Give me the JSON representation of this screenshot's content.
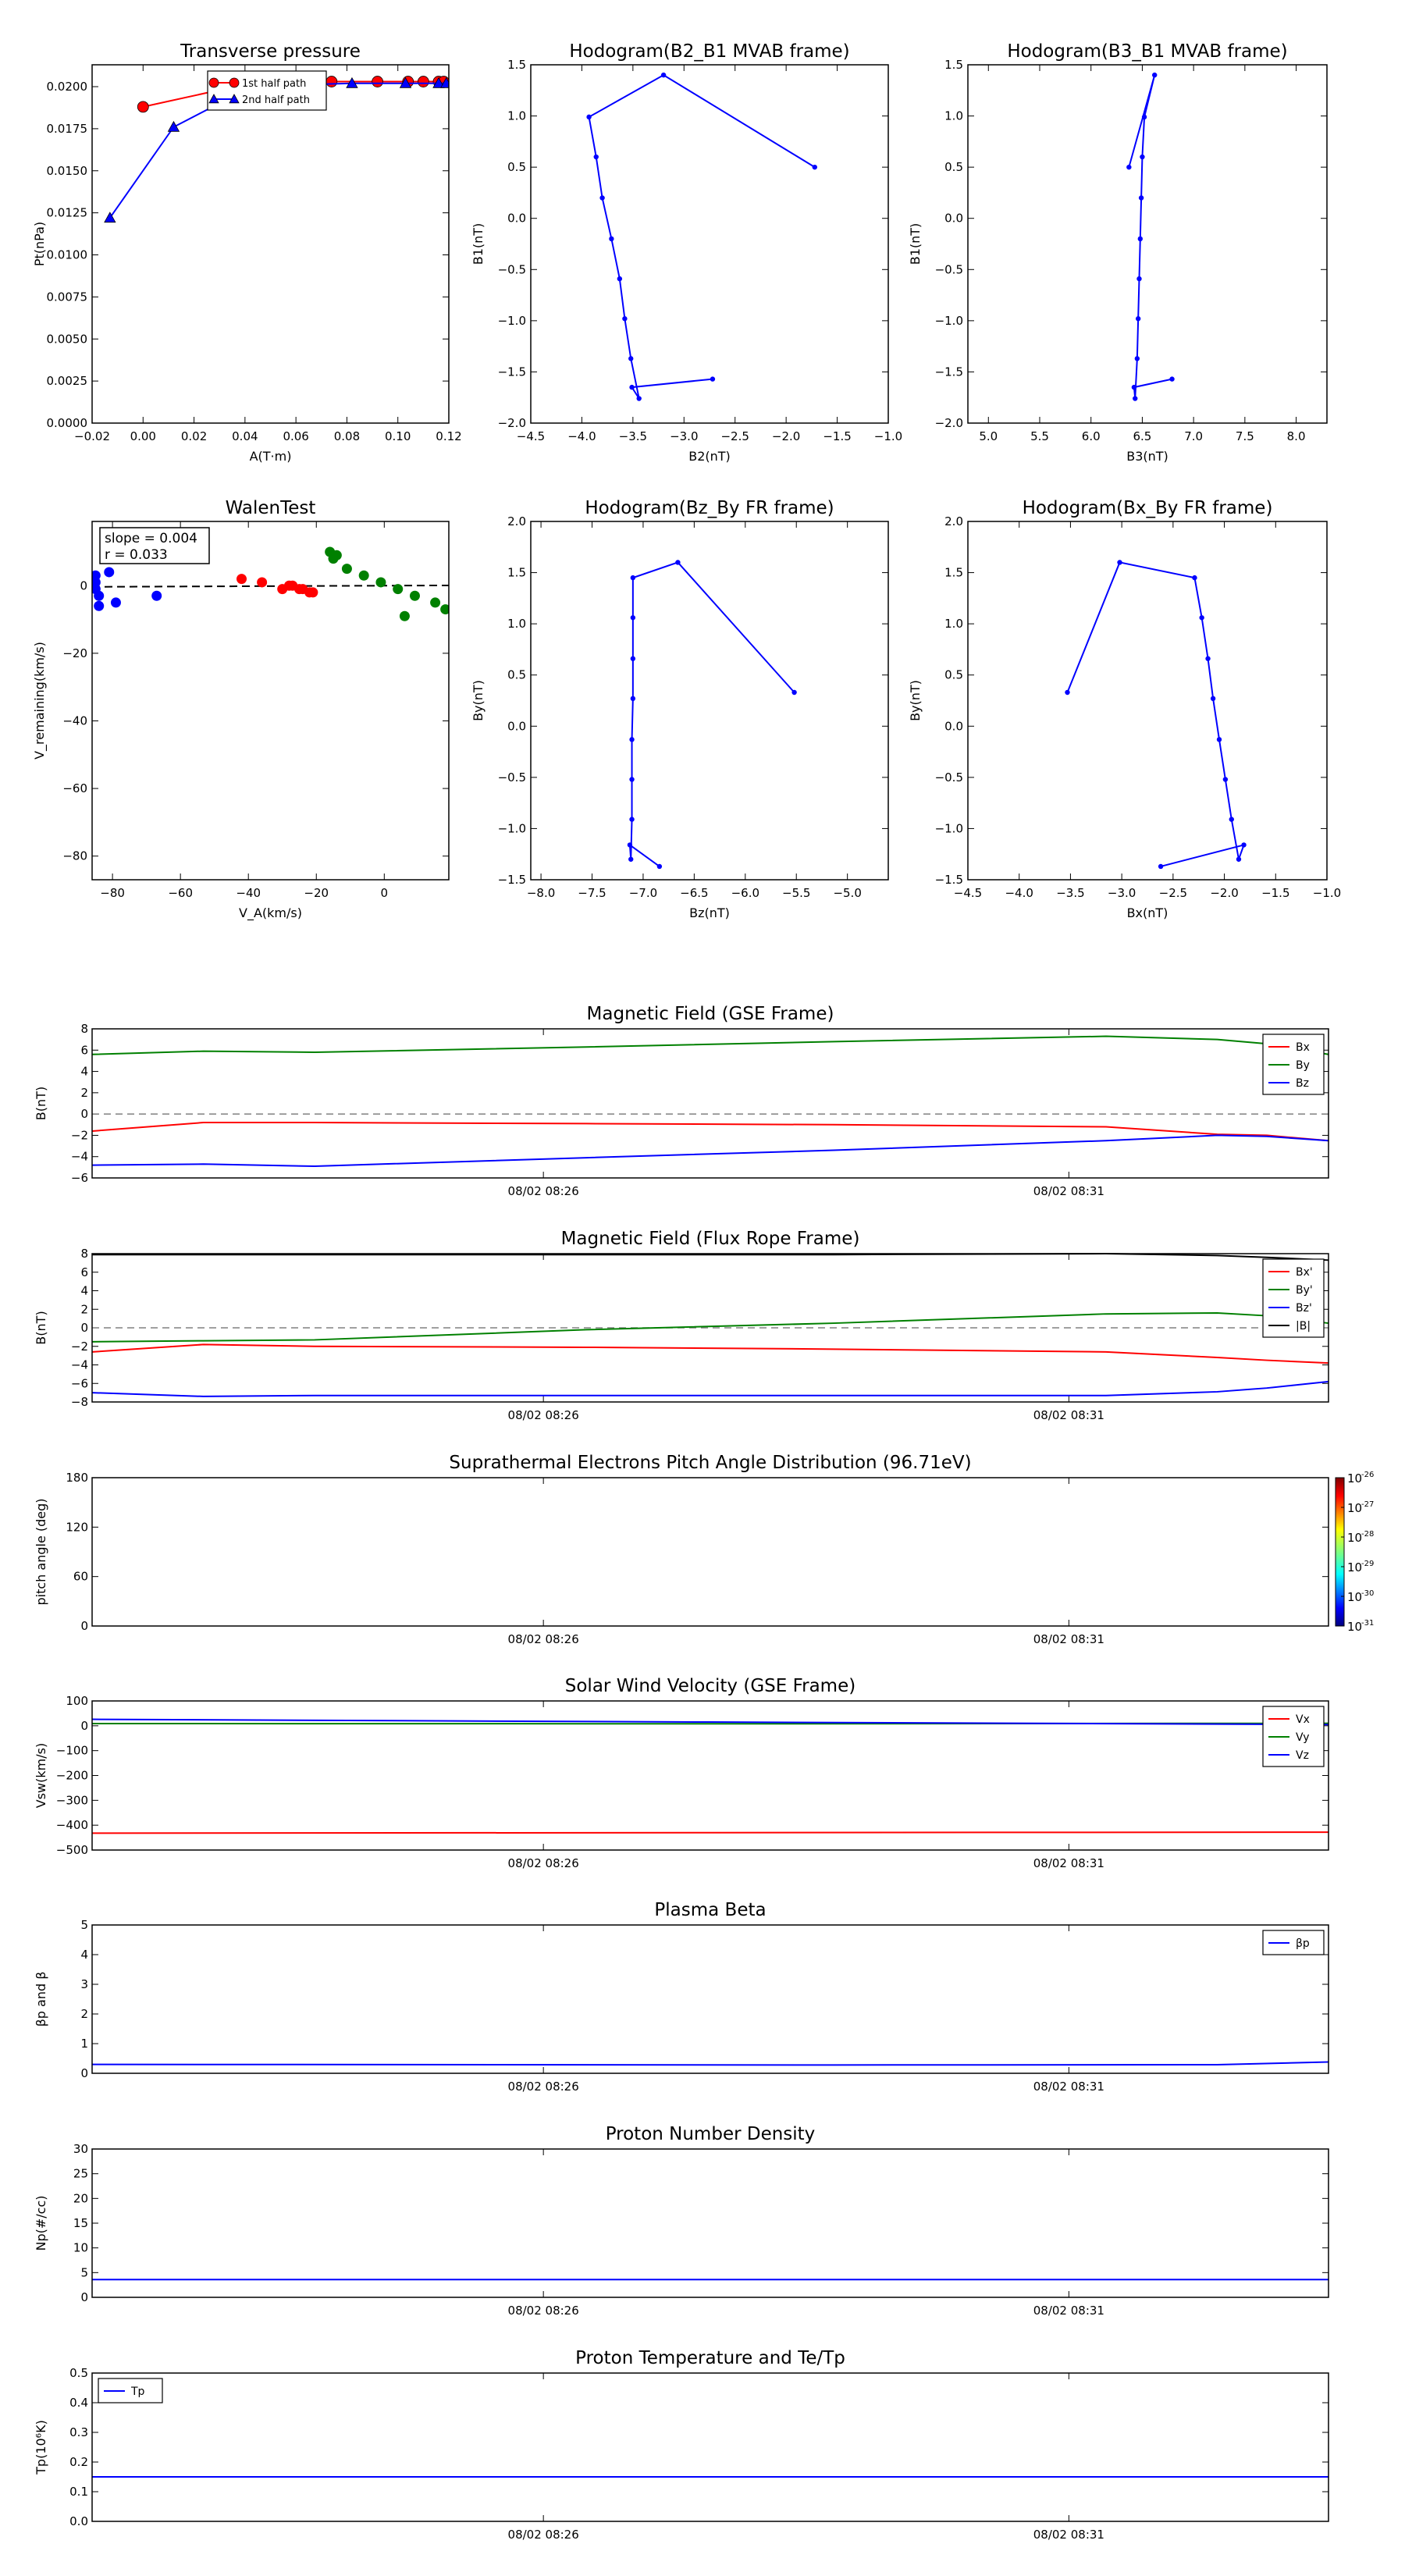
{
  "colors": {
    "red": "#ff0000",
    "green": "#008000",
    "blue": "#0000ff",
    "black": "#000000",
    "gray": "#808080"
  },
  "time_ticks": [
    "08/02 08:26",
    "08/02 08:31"
  ],
  "chart_data": [
    {
      "id": "transverse_pressure",
      "type": "line",
      "title": "Transverse pressure",
      "xlabel": "A(T·m)",
      "ylabel": "Pt(nPa)",
      "xlim": [
        -0.02,
        0.12
      ],
      "ylim": [
        0,
        0.0213
      ],
      "xticks": [
        -0.02,
        0.0,
        0.02,
        0.04,
        0.06,
        0.08,
        0.1,
        0.12
      ],
      "xtick_labels": [
        "−0.02",
        "0.00",
        "0.02",
        "0.04",
        "0.06",
        "0.08",
        "0.10",
        "0.12"
      ],
      "yticks": [
        0,
        0.0025,
        0.005,
        0.0075,
        0.01,
        0.0125,
        0.015,
        0.0175,
        0.02
      ],
      "ytick_labels": [
        "0.0000",
        "0.0025",
        "0.0050",
        "0.0075",
        "0.0100",
        "0.0125",
        "0.0150",
        "0.0175",
        "0.0200"
      ],
      "legend": "top-right",
      "series": [
        {
          "name": "1st half path",
          "color": "red",
          "marker": "circle",
          "x": [
            0.0,
            0.033,
            0.058,
            0.074,
            0.092,
            0.104,
            0.11,
            0.116,
            0.118
          ],
          "y": [
            0.0188,
            0.0199,
            0.0203,
            0.0203,
            0.0203,
            0.0203,
            0.0203,
            0.0203,
            0.0203
          ]
        },
        {
          "name": "2nd half path",
          "color": "blue",
          "marker": "triangle",
          "x": [
            -0.013,
            0.012,
            0.035,
            0.058,
            0.082,
            0.103,
            0.116,
            0.119
          ],
          "y": [
            0.0122,
            0.0176,
            0.0194,
            0.0201,
            0.0202,
            0.0202,
            0.0202,
            0.0202
          ]
        }
      ]
    },
    {
      "id": "hodo_b2_b1",
      "type": "line",
      "title": "Hodogram(B2_B1 MVAB frame)",
      "xlabel": "B2(nT)",
      "ylabel": "B1(nT)",
      "xlim": [
        -4.5,
        -1.0
      ],
      "ylim": [
        -2.0,
        1.5
      ],
      "xticks": [
        -4.5,
        -4.0,
        -3.5,
        -3.0,
        -2.5,
        -2.0,
        -1.5,
        -1.0
      ],
      "xtick_labels": [
        "−4.5",
        "−4.0",
        "−3.5",
        "−3.0",
        "−2.5",
        "−2.0",
        "−1.5",
        "−1.0"
      ],
      "yticks": [
        -2.0,
        -1.5,
        -1.0,
        -0.5,
        0.0,
        0.5,
        1.0,
        1.5
      ],
      "ytick_labels": [
        "−2.0",
        "−1.5",
        "−1.0",
        "−0.5",
        "0.0",
        "0.5",
        "1.0",
        "1.5"
      ],
      "series": [
        {
          "color": "blue",
          "marker": "dot",
          "x": [
            -1.72,
            -3.2,
            -3.93,
            -3.86,
            -3.8,
            -3.71,
            -3.63,
            -3.58,
            -3.52,
            -3.44,
            -3.51,
            -2.72
          ],
          "y": [
            0.5,
            1.4,
            0.99,
            0.6,
            0.2,
            -0.2,
            -0.59,
            -0.98,
            -1.37,
            -1.76,
            -1.65,
            -1.57
          ]
        }
      ]
    },
    {
      "id": "hodo_b3_b1",
      "type": "line",
      "title": "Hodogram(B3_B1 MVAB frame)",
      "xlabel": "B3(nT)",
      "ylabel": "B1(nT)",
      "xlim": [
        4.8,
        8.3
      ],
      "ylim": [
        -2.0,
        1.5
      ],
      "xticks": [
        5.0,
        5.5,
        6.0,
        6.5,
        7.0,
        7.5,
        8.0
      ],
      "xtick_labels": [
        "5.0",
        "5.5",
        "6.0",
        "6.5",
        "7.0",
        "7.5",
        "8.0"
      ],
      "yticks": [
        -2.0,
        -1.5,
        -1.0,
        -0.5,
        0.0,
        0.5,
        1.0,
        1.5
      ],
      "ytick_labels": [
        "−2.0",
        "−1.5",
        "−1.0",
        "−0.5",
        "0.0",
        "0.5",
        "1.0",
        "1.5"
      ],
      "series": [
        {
          "color": "blue",
          "marker": "dot",
          "x": [
            6.37,
            6.62,
            6.52,
            6.5,
            6.49,
            6.48,
            6.47,
            6.46,
            6.45,
            6.43,
            6.42,
            6.79
          ],
          "y": [
            0.5,
            1.4,
            0.99,
            0.6,
            0.2,
            -0.2,
            -0.59,
            -0.98,
            -1.37,
            -1.76,
            -1.65,
            -1.57
          ]
        }
      ]
    },
    {
      "id": "walen_test",
      "type": "scatter",
      "title": "WalenTest",
      "xlabel": "V_A(km/s)",
      "ylabel": "V_remaining(km/s)",
      "xlim": [
        -86,
        19
      ],
      "ylim": [
        -87,
        19
      ],
      "xticks": [
        -80,
        -60,
        -40,
        -20,
        0
      ],
      "xtick_labels": [
        "−80",
        "−60",
        "−40",
        "−20",
        "0"
      ],
      "yticks": [
        -80,
        -60,
        -40,
        -20,
        0
      ],
      "ytick_labels": [
        "−80",
        "−60",
        "−40",
        "−20",
        "0"
      ],
      "annotation": [
        "slope = 0.004",
        "r = 0.033"
      ],
      "fit_line": {
        "slope": 0.004,
        "intercept": 0.0
      },
      "series": [
        {
          "color": "blue",
          "x": [
            -85,
            -85,
            -84,
            -84,
            -85,
            -81,
            -79,
            -67
          ],
          "y": [
            3,
            -1,
            -3,
            -6,
            1,
            4,
            -5,
            -3
          ]
        },
        {
          "color": "red",
          "x": [
            -42,
            -36,
            -30,
            -28,
            -27,
            -25,
            -24,
            -22,
            -21
          ],
          "y": [
            2,
            1,
            -1,
            0,
            0,
            -1,
            -1,
            -2,
            -2
          ]
        },
        {
          "color": "green",
          "x": [
            -16,
            -15,
            -14,
            -11,
            -6,
            -1,
            4,
            6,
            9,
            15,
            18
          ],
          "y": [
            10,
            8,
            9,
            5,
            3,
            1,
            -1,
            -9,
            -3,
            -5,
            -7
          ]
        }
      ]
    },
    {
      "id": "hodo_bz_by",
      "type": "line",
      "title": "Hodogram(Bz_By FR frame)",
      "xlabel": "Bz(nT)",
      "ylabel": "By(nT)",
      "xlim": [
        -8.1,
        -4.6
      ],
      "ylim": [
        -1.5,
        2.0
      ],
      "xticks": [
        -8.0,
        -7.5,
        -7.0,
        -6.5,
        -6.0,
        -5.5,
        -5.0
      ],
      "xtick_labels": [
        "−8.0",
        "−7.5",
        "−7.0",
        "−6.5",
        "−6.0",
        "−5.5",
        "−5.0"
      ],
      "yticks": [
        -1.5,
        -1.0,
        -0.5,
        0.0,
        0.5,
        1.0,
        1.5,
        2.0
      ],
      "ytick_labels": [
        "−1.5",
        "−1.0",
        "−0.5",
        "0.0",
        "0.5",
        "1.0",
        "1.5",
        "2.0"
      ],
      "series": [
        {
          "color": "blue",
          "marker": "dot",
          "x": [
            -5.52,
            -6.66,
            -7.1,
            -7.1,
            -7.1,
            -7.1,
            -7.11,
            -7.11,
            -7.11,
            -7.12,
            -7.13,
            -6.84
          ],
          "y": [
            0.33,
            1.6,
            1.45,
            1.06,
            0.66,
            0.27,
            -0.13,
            -0.52,
            -0.91,
            -1.3,
            -1.16,
            -1.37
          ]
        }
      ]
    },
    {
      "id": "hodo_bx_by",
      "type": "line",
      "title": "Hodogram(Bx_By FR frame)",
      "xlabel": "Bx(nT)",
      "ylabel": "By(nT)",
      "xlim": [
        -4.5,
        -1.0
      ],
      "ylim": [
        -1.5,
        2.0
      ],
      "xticks": [
        -4.5,
        -4.0,
        -3.5,
        -3.0,
        -2.5,
        -2.0,
        -1.5,
        -1.0
      ],
      "xtick_labels": [
        "−4.5",
        "−4.0",
        "−3.5",
        "−3.0",
        "−2.5",
        "−2.0",
        "−1.5",
        "−1.0"
      ],
      "yticks": [
        -1.5,
        -1.0,
        -0.5,
        0.0,
        0.5,
        1.0,
        1.5,
        2.0
      ],
      "ytick_labels": [
        "−1.5",
        "−1.0",
        "−0.5",
        "0.0",
        "0.5",
        "1.0",
        "1.5",
        "2.0"
      ],
      "series": [
        {
          "color": "blue",
          "marker": "dot",
          "x": [
            -3.53,
            -3.02,
            -2.29,
            -2.22,
            -2.16,
            -2.11,
            -2.05,
            -1.99,
            -1.93,
            -1.86,
            -1.81,
            -2.62
          ],
          "y": [
            0.33,
            1.6,
            1.45,
            1.06,
            0.66,
            0.27,
            -0.13,
            -0.52,
            -0.91,
            -1.3,
            -1.16,
            -1.37
          ]
        }
      ]
    },
    {
      "id": "mag_gse",
      "type": "line",
      "title": "Magnetic Field (GSE Frame)",
      "ylabel": "B(nT)",
      "ylim": [
        -6,
        8
      ],
      "yticks": [
        -6,
        -4,
        -2,
        0,
        2,
        4,
        6,
        8
      ],
      "ytick_labels": [
        "−6",
        "−4",
        "−2",
        "0",
        "2",
        "4",
        "6",
        "8"
      ],
      "zero_line": true,
      "legend": "top-right",
      "x": [
        0,
        0.09,
        0.18,
        0.4,
        0.6,
        0.82,
        0.91,
        0.95,
        1.0
      ],
      "series": [
        {
          "name": "Bx",
          "color": "red",
          "values": [
            -1.6,
            -0.8,
            -0.8,
            -0.9,
            -1.0,
            -1.2,
            -1.9,
            -2.0,
            -2.5
          ]
        },
        {
          "name": "By",
          "color": "green",
          "values": [
            5.6,
            5.9,
            5.8,
            6.3,
            6.8,
            7.3,
            7.0,
            6.6,
            5.6
          ]
        },
        {
          "name": "Bz",
          "color": "blue",
          "values": [
            -4.8,
            -4.7,
            -4.9,
            -4.1,
            -3.4,
            -2.5,
            -2.0,
            -2.1,
            -2.5
          ]
        }
      ]
    },
    {
      "id": "mag_fr",
      "type": "line",
      "title": "Magnetic Field (Flux Rope Frame)",
      "ylabel": "B(nT)",
      "ylim": [
        -8,
        8
      ],
      "yticks": [
        -8,
        -6,
        -4,
        -2,
        0,
        2,
        4,
        6,
        8
      ],
      "ytick_labels": [
        "−8",
        "−6",
        "−4",
        "−2",
        "0",
        "2",
        "4",
        "6",
        "8"
      ],
      "zero_line": true,
      "legend": "top-right",
      "x": [
        0,
        0.09,
        0.18,
        0.4,
        0.6,
        0.82,
        0.91,
        0.95,
        1.0
      ],
      "series": [
        {
          "name": "Bx'",
          "color": "red",
          "values": [
            -2.6,
            -1.8,
            -2.0,
            -2.1,
            -2.3,
            -2.6,
            -3.2,
            -3.5,
            -3.8
          ]
        },
        {
          "name": "By'",
          "color": "green",
          "values": [
            -1.5,
            -1.4,
            -1.3,
            -0.2,
            0.5,
            1.5,
            1.6,
            1.3,
            0.5
          ]
        },
        {
          "name": "Bz'",
          "color": "blue",
          "values": [
            -7.0,
            -7.4,
            -7.3,
            -7.3,
            -7.3,
            -7.3,
            -6.9,
            -6.5,
            -5.8
          ]
        },
        {
          "name": "|B|",
          "color": "black",
          "values": [
            7.9,
            7.9,
            7.9,
            7.9,
            7.9,
            8.0,
            7.8,
            7.6,
            7.3
          ]
        }
      ]
    },
    {
      "id": "pad",
      "type": "heatmap",
      "title": "Suprathermal Electrons Pitch Angle Distribution (96.71eV)",
      "ylabel": "pitch angle (deg)",
      "ylim": [
        0,
        180
      ],
      "yticks": [
        0,
        60,
        120,
        180
      ],
      "ytick_labels": [
        "0",
        "60",
        "120",
        "180"
      ],
      "colorbar": {
        "labels": [
          "10",
          "10",
          "10",
          "10",
          "10",
          "10"
        ],
        "exponents": [
          "-26",
          "-27",
          "-28",
          "-29",
          "-30",
          "-31"
        ]
      }
    },
    {
      "id": "vsw",
      "type": "line",
      "title": "Solar Wind Velocity (GSE Frame)",
      "ylabel": "Vsw(km/s)",
      "ylim": [
        -500,
        100
      ],
      "yticks": [
        -500,
        -400,
        -300,
        -200,
        -100,
        0,
        100
      ],
      "ytick_labels": [
        "−500",
        "−400",
        "−300",
        "−200",
        "−100",
        "0",
        "100"
      ],
      "legend": "top-right",
      "x": [
        0,
        0.5,
        1.0
      ],
      "series": [
        {
          "name": "Vx",
          "color": "red",
          "values": [
            -432,
            -430,
            -428
          ]
        },
        {
          "name": "Vy",
          "color": "green",
          "values": [
            9,
            8,
            10
          ]
        },
        {
          "name": "Vz",
          "color": "blue",
          "values": [
            26,
            15,
            5
          ]
        }
      ]
    },
    {
      "id": "beta",
      "type": "line",
      "title": "Plasma Beta",
      "ylabel": "βp and β",
      "ylim": [
        0,
        5
      ],
      "yticks": [
        0,
        1,
        2,
        3,
        4,
        5
      ],
      "ytick_labels": [
        "0",
        "1",
        "2",
        "3",
        "4",
        "5"
      ],
      "legend": "top-right",
      "x": [
        0,
        0.6,
        0.91,
        1.0
      ],
      "series": [
        {
          "name": "βp",
          "color": "blue",
          "values": [
            0.3,
            0.28,
            0.29,
            0.38
          ]
        }
      ]
    },
    {
      "id": "np",
      "type": "line",
      "title": "Proton Number Density",
      "ylabel": "Np(#/cc)",
      "ylim": [
        0,
        30
      ],
      "yticks": [
        0,
        5,
        10,
        15,
        20,
        25,
        30
      ],
      "ytick_labels": [
        "0",
        "5",
        "10",
        "15",
        "20",
        "25",
        "30"
      ],
      "x": [
        0,
        1.0
      ],
      "series": [
        {
          "color": "blue",
          "values": [
            3.6,
            3.6
          ]
        }
      ]
    },
    {
      "id": "tp",
      "type": "line",
      "title": "Proton Temperature and Te/Tp",
      "ylabel": "Tp(10⁶K)",
      "ylim": [
        0,
        0.5
      ],
      "yticks": [
        0,
        0.1,
        0.2,
        0.3,
        0.4,
        0.5
      ],
      "ytick_labels": [
        "0.0",
        "0.1",
        "0.2",
        "0.3",
        "0.4",
        "0.5"
      ],
      "legend": "top-left",
      "x": [
        0,
        1.0
      ],
      "series": [
        {
          "name": "Tp",
          "color": "blue",
          "values": [
            0.15,
            0.15
          ]
        }
      ]
    }
  ]
}
